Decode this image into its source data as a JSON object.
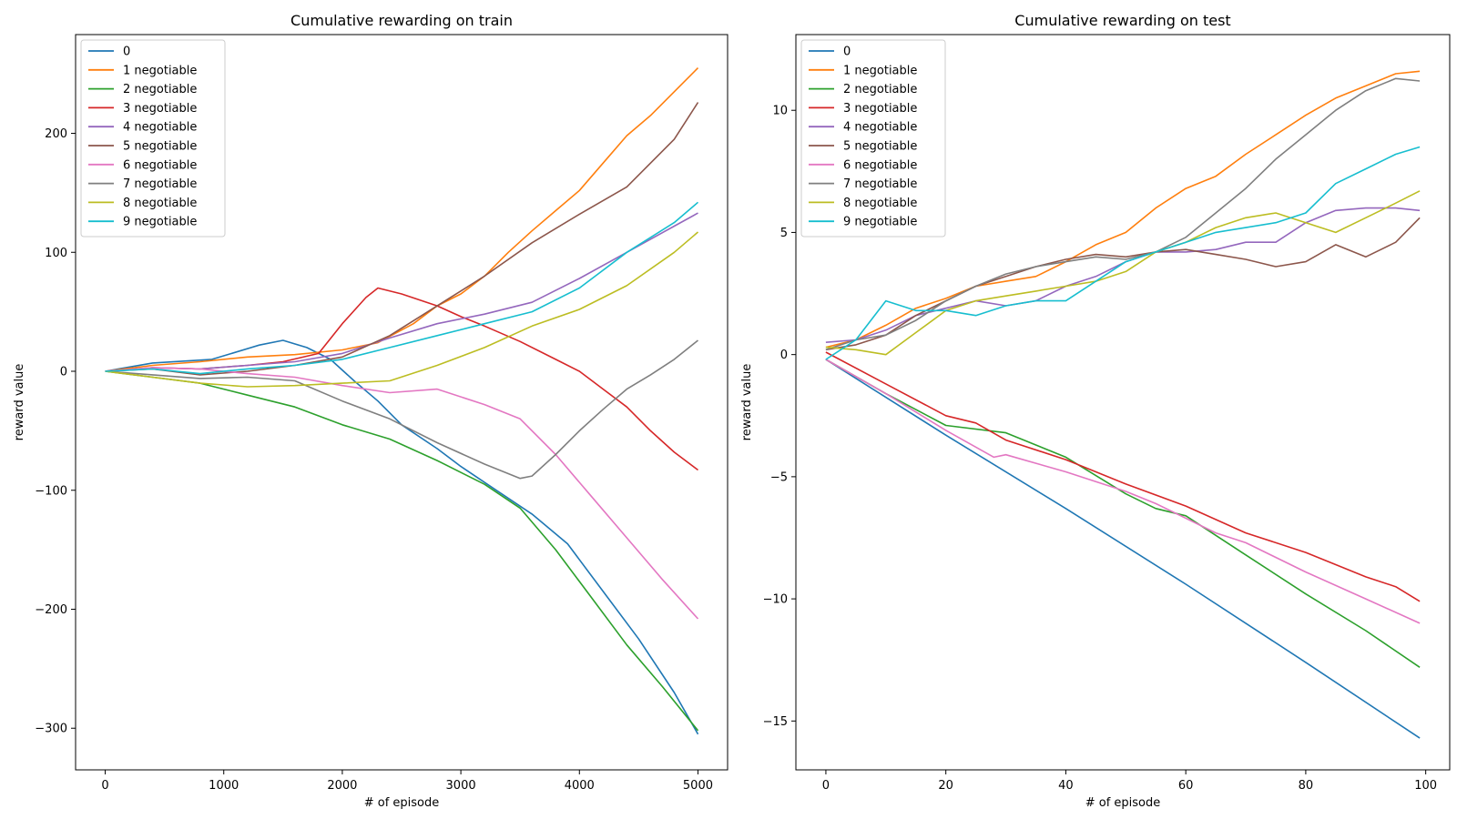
{
  "chart_data": [
    {
      "type": "line",
      "title": "Cumulative rewarding on train",
      "xlabel": "# of episode",
      "ylabel": "reward value",
      "xlim": [
        -250,
        5250
      ],
      "ylim": [
        -335,
        283
      ],
      "xticks": [
        0,
        1000,
        2000,
        3000,
        4000,
        5000
      ],
      "yticks": [
        -300,
        -200,
        -100,
        0,
        100,
        200
      ],
      "grid": false,
      "legend_position": "top-left",
      "series": [
        {
          "name": "0",
          "color": "#1f77b4",
          "x": [
            0,
            400,
            900,
            1300,
            1500,
            1700,
            1900,
            2100,
            2300,
            2500,
            2800,
            3000,
            3300,
            3600,
            3900,
            4200,
            4500,
            4800,
            5000
          ],
          "y": [
            0,
            7,
            10,
            22,
            26,
            20,
            10,
            -8,
            -25,
            -45,
            -65,
            -80,
            -100,
            -120,
            -145,
            -185,
            -225,
            -270,
            -305
          ]
        },
        {
          "name": "1 negotiable",
          "color": "#ff7f0e",
          "x": [
            0,
            400,
            800,
            1200,
            1600,
            2000,
            2300,
            2600,
            2800,
            3000,
            3200,
            3400,
            3600,
            3800,
            4000,
            4200,
            4400,
            4600,
            4800,
            5000
          ],
          "y": [
            0,
            5,
            8,
            12,
            14,
            18,
            24,
            40,
            55,
            65,
            80,
            100,
            118,
            135,
            152,
            175,
            198,
            215,
            235,
            255
          ]
        },
        {
          "name": "2 negotiable",
          "color": "#2ca02c",
          "x": [
            0,
            400,
            800,
            1200,
            1600,
            2000,
            2400,
            2800,
            3200,
            3500,
            3800,
            4100,
            4400,
            4700,
            5000
          ],
          "y": [
            0,
            -5,
            -10,
            -20,
            -30,
            -45,
            -57,
            -75,
            -95,
            -115,
            -150,
            -190,
            -230,
            -265,
            -302
          ]
        },
        {
          "name": "3 negotiable",
          "color": "#d62728",
          "x": [
            0,
            400,
            800,
            1200,
            1500,
            1800,
            2000,
            2200,
            2300,
            2500,
            2800,
            3000,
            3200,
            3500,
            3800,
            4000,
            4200,
            4400,
            4600,
            4800,
            5000
          ],
          "y": [
            0,
            3,
            2,
            5,
            8,
            15,
            40,
            62,
            70,
            65,
            55,
            46,
            38,
            25,
            10,
            0,
            -15,
            -30,
            -50,
            -68,
            -83
          ]
        },
        {
          "name": "4 negotiable",
          "color": "#9467bd",
          "x": [
            0,
            400,
            800,
            1200,
            1600,
            2000,
            2400,
            2800,
            3200,
            3600,
            4000,
            4400,
            4800,
            5000
          ],
          "y": [
            0,
            3,
            2,
            5,
            8,
            15,
            28,
            40,
            48,
            58,
            78,
            100,
            122,
            133
          ]
        },
        {
          "name": "5 negotiable",
          "color": "#8c564b",
          "x": [
            0,
            400,
            800,
            1200,
            1600,
            2000,
            2400,
            2800,
            3200,
            3600,
            4000,
            4400,
            4800,
            5000
          ],
          "y": [
            0,
            2,
            -3,
            0,
            5,
            12,
            30,
            55,
            80,
            108,
            132,
            155,
            195,
            226
          ]
        },
        {
          "name": "6 negotiable",
          "color": "#e377c2",
          "x": [
            0,
            400,
            800,
            1200,
            1600,
            2000,
            2400,
            2800,
            3200,
            3500,
            3800,
            4100,
            4400,
            4700,
            5000
          ],
          "y": [
            0,
            3,
            2,
            -2,
            -5,
            -12,
            -18,
            -15,
            -28,
            -40,
            -70,
            -105,
            -140,
            -175,
            -208
          ]
        },
        {
          "name": "7 negotiable",
          "color": "#7f7f7f",
          "x": [
            0,
            400,
            800,
            1200,
            1600,
            2000,
            2400,
            2800,
            3200,
            3500,
            3600,
            3800,
            4000,
            4200,
            4400,
            4600,
            4800,
            5000
          ],
          "y": [
            0,
            -3,
            -6,
            -5,
            -8,
            -25,
            -40,
            -60,
            -78,
            -90,
            -88,
            -70,
            -50,
            -32,
            -15,
            -3,
            10,
            26
          ]
        },
        {
          "name": "8 negotiable",
          "color": "#bcbd22",
          "x": [
            0,
            400,
            800,
            1200,
            1600,
            2000,
            2400,
            2800,
            3200,
            3600,
            4000,
            4400,
            4800,
            5000
          ],
          "y": [
            0,
            -5,
            -10,
            -13,
            -12,
            -10,
            -8,
            5,
            20,
            38,
            52,
            72,
            100,
            117
          ]
        },
        {
          "name": "9 negotiable",
          "color": "#17becf",
          "x": [
            0,
            400,
            800,
            1200,
            1600,
            2000,
            2400,
            2800,
            3200,
            3600,
            4000,
            4400,
            4800,
            5000
          ],
          "y": [
            0,
            2,
            -2,
            2,
            5,
            10,
            20,
            30,
            40,
            50,
            70,
            100,
            125,
            142
          ]
        }
      ]
    },
    {
      "type": "line",
      "title": "Cumulative rewarding on test",
      "xlabel": "# of episode",
      "ylabel": "reward value",
      "xlim": [
        -5,
        104
      ],
      "ylim": [
        -17,
        13.1
      ],
      "xticks": [
        0,
        20,
        40,
        60,
        80,
        100
      ],
      "yticks": [
        -15,
        -10,
        -5,
        0,
        5,
        10
      ],
      "grid": false,
      "legend_position": "top-left",
      "series": [
        {
          "name": "0",
          "color": "#1f77b4",
          "x": [
            0,
            20,
            40,
            60,
            80,
            99
          ],
          "y": [
            -0.2,
            -3.3,
            -6.3,
            -9.4,
            -12.6,
            -15.7
          ]
        },
        {
          "name": "1 negotiable",
          "color": "#ff7f0e",
          "x": [
            0,
            5,
            10,
            15,
            20,
            25,
            30,
            35,
            40,
            45,
            50,
            55,
            60,
            65,
            70,
            75,
            80,
            85,
            90,
            95,
            99
          ],
          "y": [
            0.3,
            0.6,
            1.2,
            1.9,
            2.3,
            2.8,
            3.0,
            3.2,
            3.8,
            4.5,
            5.0,
            6.0,
            6.8,
            7.3,
            8.2,
            9.0,
            9.8,
            10.5,
            11.0,
            11.5,
            11.6
          ]
        },
        {
          "name": "2 negotiable",
          "color": "#2ca02c",
          "x": [
            0,
            10,
            20,
            30,
            40,
            50,
            55,
            60,
            70,
            80,
            90,
            99
          ],
          "y": [
            -0.2,
            -1.6,
            -2.9,
            -3.2,
            -4.2,
            -5.7,
            -6.3,
            -6.6,
            -8.2,
            -9.8,
            -11.3,
            -12.8
          ]
        },
        {
          "name": "3 negotiable",
          "color": "#d62728",
          "x": [
            0,
            10,
            20,
            25,
            30,
            40,
            50,
            60,
            70,
            80,
            90,
            95,
            99
          ],
          "y": [
            0.1,
            -1.2,
            -2.5,
            -2.8,
            -3.5,
            -4.3,
            -5.3,
            -6.2,
            -7.3,
            -8.1,
            -9.1,
            -9.5,
            -10.1
          ]
        },
        {
          "name": "4 negotiable",
          "color": "#9467bd",
          "x": [
            0,
            5,
            10,
            15,
            20,
            25,
            30,
            35,
            40,
            45,
            50,
            55,
            60,
            65,
            70,
            75,
            80,
            85,
            90,
            95,
            99
          ],
          "y": [
            0.5,
            0.6,
            1.0,
            1.6,
            1.9,
            2.2,
            2.0,
            2.2,
            2.8,
            3.2,
            3.8,
            4.2,
            4.2,
            4.3,
            4.6,
            4.6,
            5.4,
            5.9,
            6.0,
            6.0,
            5.9
          ]
        },
        {
          "name": "5 negotiable",
          "color": "#8c564b",
          "x": [
            0,
            5,
            10,
            15,
            20,
            25,
            30,
            35,
            40,
            45,
            50,
            55,
            60,
            65,
            70,
            75,
            80,
            85,
            90,
            95,
            99
          ],
          "y": [
            0.2,
            0.4,
            0.8,
            1.6,
            2.2,
            2.8,
            3.2,
            3.6,
            3.9,
            4.1,
            4.0,
            4.2,
            4.3,
            4.1,
            3.9,
            3.6,
            3.8,
            4.5,
            4.0,
            4.6,
            5.6
          ]
        },
        {
          "name": "6 negotiable",
          "color": "#e377c2",
          "x": [
            0,
            10,
            20,
            28,
            30,
            40,
            50,
            55,
            60,
            65,
            70,
            80,
            90,
            99
          ],
          "y": [
            -0.2,
            -1.6,
            -3.1,
            -4.2,
            -4.1,
            -4.8,
            -5.6,
            -6.1,
            -6.7,
            -7.3,
            -7.7,
            -8.9,
            -10.0,
            -11.0
          ]
        },
        {
          "name": "7 negotiable",
          "color": "#7f7f7f",
          "x": [
            0,
            5,
            10,
            15,
            20,
            25,
            30,
            35,
            40,
            45,
            50,
            55,
            60,
            65,
            70,
            75,
            80,
            85,
            90,
            95,
            99
          ],
          "y": [
            0.2,
            0.6,
            0.8,
            1.4,
            2.2,
            2.8,
            3.3,
            3.6,
            3.8,
            4.0,
            3.9,
            4.2,
            4.8,
            5.8,
            6.8,
            8.0,
            9.0,
            10.0,
            10.8,
            11.3,
            11.2
          ]
        },
        {
          "name": "8 negotiable",
          "color": "#bcbd22",
          "x": [
            0,
            5,
            10,
            15,
            20,
            25,
            30,
            35,
            40,
            45,
            50,
            55,
            60,
            65,
            70,
            75,
            80,
            85,
            90,
            95,
            99
          ],
          "y": [
            0.3,
            0.2,
            0.0,
            0.9,
            1.8,
            2.2,
            2.4,
            2.6,
            2.8,
            3.0,
            3.4,
            4.2,
            4.6,
            5.2,
            5.6,
            5.8,
            5.4,
            5.0,
            5.6,
            6.2,
            6.7
          ]
        },
        {
          "name": "9 negotiable",
          "color": "#17becf",
          "x": [
            0,
            5,
            10,
            15,
            20,
            25,
            30,
            35,
            40,
            45,
            50,
            55,
            60,
            65,
            70,
            75,
            80,
            85,
            90,
            95,
            99
          ],
          "y": [
            -0.2,
            0.6,
            2.2,
            1.8,
            1.8,
            1.6,
            2.0,
            2.2,
            2.2,
            3.0,
            3.8,
            4.2,
            4.6,
            5.0,
            5.2,
            5.4,
            5.8,
            7.0,
            7.6,
            8.2,
            8.5
          ]
        }
      ]
    }
  ]
}
